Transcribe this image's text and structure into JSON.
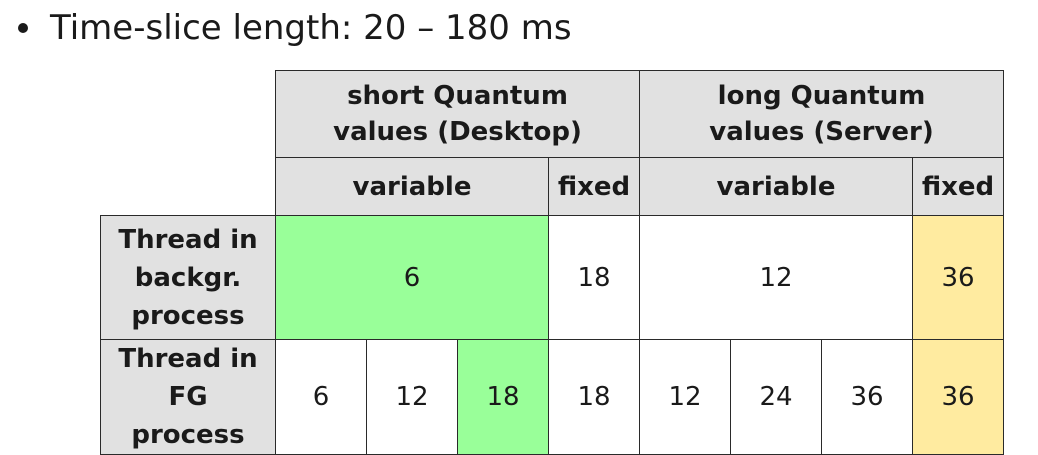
{
  "bullet": {
    "text": "Time-slice length: 20 – 180 ms"
  },
  "table": {
    "header_groups": {
      "short": "short Quantum values (Desktop)",
      "long": "long Quantum values (Server)"
    },
    "subheaders": {
      "short_variable": "variable",
      "short_fixed": "fixed",
      "long_variable": "variable",
      "long_fixed": "fixed"
    },
    "rows": {
      "background": {
        "label": "Thread in backgr. process",
        "short_variable": "6",
        "short_fixed": "18",
        "long_variable": "12",
        "long_fixed": "36"
      },
      "foreground": {
        "label": "Thread in FG process",
        "short_variable": [
          "6",
          "12",
          "18"
        ],
        "short_fixed": "18",
        "long_variable": [
          "12",
          "24",
          "36"
        ],
        "long_fixed": "36"
      }
    },
    "colors": {
      "header_bg": "#e1e1e1",
      "highlight_green": "#99ff99",
      "highlight_yellow": "#ffeba0"
    }
  }
}
